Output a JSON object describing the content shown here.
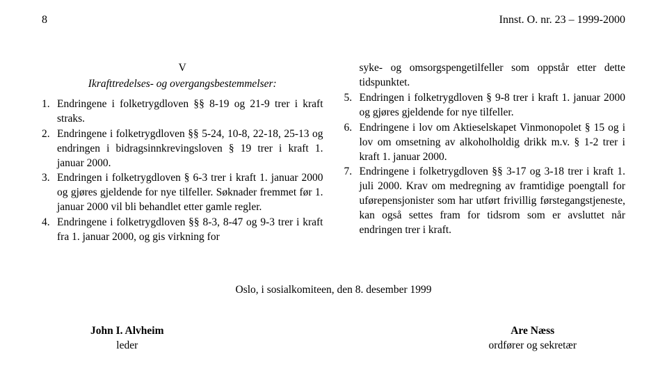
{
  "header": {
    "page_number": "8",
    "doc_ref": "Innst. O. nr. 23 – 1999-2000"
  },
  "section": {
    "roman": "V",
    "subtitle": "Ikrafttredelses- og overgangsbestemmelser:"
  },
  "left_items": [
    {
      "num": "1.",
      "text": "Endringene i folketrygdloven §§ 8-19 og 21-9 trer i kraft straks."
    },
    {
      "num": "2.",
      "text": "Endringene i folketrygdloven §§ 5-24, 10-8, 22-18, 25-13 og endringen i bidragsinnkrevingsloven § 19 trer i kraft 1. januar 2000."
    },
    {
      "num": "3.",
      "text": "Endringen i folketrygdloven § 6-3 trer i kraft 1. januar 2000 og gjøres gjeldende for nye tilfeller. Søknader fremmet før 1. januar 2000 vil bli behandlet etter gamle regler."
    },
    {
      "num": "4.",
      "text": "Endringene i folketrygdloven §§ 8-3, 8-47 og 9-3 trer i kraft fra 1. januar 2000, og gis virkning for"
    }
  ],
  "right_continuation": "syke- og omsorgspengetilfeller som oppstår etter dette tidspunktet.",
  "right_items": [
    {
      "num": "5.",
      "text": "Endringen i folketrygdloven § 9-8 trer i kraft 1. januar 2000 og gjøres gjeldende for nye tilfeller."
    },
    {
      "num": "6.",
      "text": "Endringene i lov om Aktieselskapet Vinmonopolet § 15 og i lov om omsetning av alkoholholdig drikk m.v. § 1-2 trer i kraft 1. januar 2000."
    },
    {
      "num": "7.",
      "text": "Endringene i folketrygdloven §§ 3-17 og 3-18 trer i kraft 1. juli 2000. Krav om medregning av framtidige poengtall for uførepensjonister som har utført frivillig førstegangstjeneste, kan også settes fram for tidsrom som er avsluttet når endringen trer i kraft."
    }
  ],
  "closing_line": "Oslo, i sosialkomiteen, den 8. desember 1999",
  "signatures": {
    "left": {
      "name": "John I. Alvheim",
      "title": "leder"
    },
    "right": {
      "name": "Are Næss",
      "title": "ordfører og sekretær"
    }
  }
}
